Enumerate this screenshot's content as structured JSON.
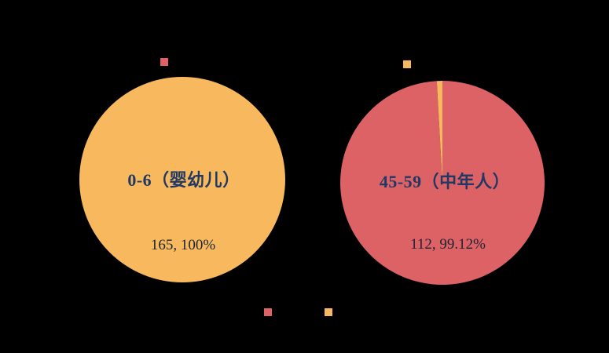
{
  "background": "#000000",
  "palette": {
    "orange": "#F8B95E",
    "red": "#DC6266",
    "category_text": "#1F3864",
    "value_text": "#1C2433"
  },
  "chart_data": [
    {
      "type": "pie",
      "title": "",
      "start_angle_deg": 0,
      "direction": "clockwise",
      "slices": [
        {
          "label": "0-6（婴幼儿）",
          "value": 165,
          "percent": 100,
          "color": "#F8B95E",
          "data_label": "165, 100%"
        }
      ],
      "legend": {
        "position": "top",
        "markers": [
          {
            "color": "#DC6266",
            "label": ""
          }
        ]
      }
    },
    {
      "type": "pie",
      "title": "",
      "start_angle_deg": 0,
      "direction": "clockwise",
      "slices": [
        {
          "label": "45-59（中年人）",
          "value": 112,
          "percent": 99.12,
          "color": "#DC6266",
          "data_label": "112, 99.12%"
        },
        {
          "label": "",
          "percent": 0.88,
          "color": "#F8B95E",
          "data_label": ""
        }
      ],
      "legend": {
        "position": "top",
        "markers": [
          {
            "color": "#F8B95E",
            "label": ""
          }
        ]
      }
    }
  ],
  "bottom_legend": {
    "markers": [
      {
        "color": "#DC6266",
        "label": ""
      },
      {
        "color": "#F8B95E",
        "label": ""
      }
    ]
  }
}
